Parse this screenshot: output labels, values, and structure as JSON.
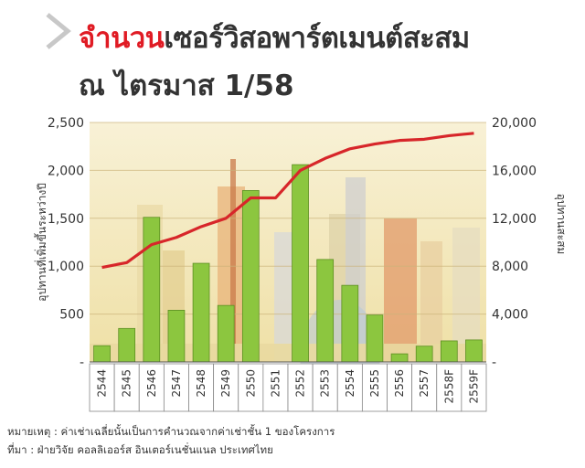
{
  "title": {
    "highlight": "จำนวน",
    "rest": "เซอร์วิสอพาร์ตเมนต์สะสม",
    "line2": "ณ ไตรมาส 1/58"
  },
  "colors": {
    "accent": "#e01b24",
    "bar": "#8cc63f",
    "line": "#d7262a",
    "panel": "#f6eac0"
  },
  "chart_data": {
    "type": "bar",
    "categories": [
      "2544",
      "2545",
      "2546",
      "2547",
      "2548",
      "2549",
      "2550",
      "2551",
      "2552",
      "2553",
      "2554",
      "2555",
      "2556",
      "2557",
      "2558F",
      "2559F"
    ],
    "series": [
      {
        "type": "bar",
        "axis": "left",
        "values": [
          170,
          350,
          1510,
          540,
          1030,
          590,
          1790,
          0,
          2060,
          1070,
          800,
          490,
          85,
          165,
          220,
          230
        ]
      },
      {
        "type": "line",
        "axis": "right",
        "values": [
          7900,
          8300,
          9800,
          10400,
          11300,
          12000,
          13700,
          13700,
          16000,
          17000,
          17800,
          18200,
          18500,
          18600,
          18900,
          19100
        ]
      }
    ],
    "ylabel": "อุปทานที่เพิ่มขึ้นระหว่างปี",
    "ylabel_right": "อุปทานสะสม",
    "ylim": [
      0,
      2500
    ],
    "ylim_right": [
      0,
      20000
    ],
    "yticks_left": [
      "-",
      "500",
      "1,000",
      "1,500",
      "2,000",
      "2,500"
    ],
    "yticks_right": [
      "-",
      "4,000",
      "8,000",
      "12,000",
      "16,000",
      "20,000"
    ],
    "grid": true,
    "legend": "none"
  },
  "notes": {
    "note": "หมายเหตุ : ค่าเช่าเฉลี่ยนั้นเป็นการคำนวณจากค่าเช่าชั้น 1 ของโครงการ",
    "source": "ที่มา : ฝ่ายวิจัย คอลลิเออร์ส อินเตอร์เนชั่นแนล ประเทศไทย"
  }
}
